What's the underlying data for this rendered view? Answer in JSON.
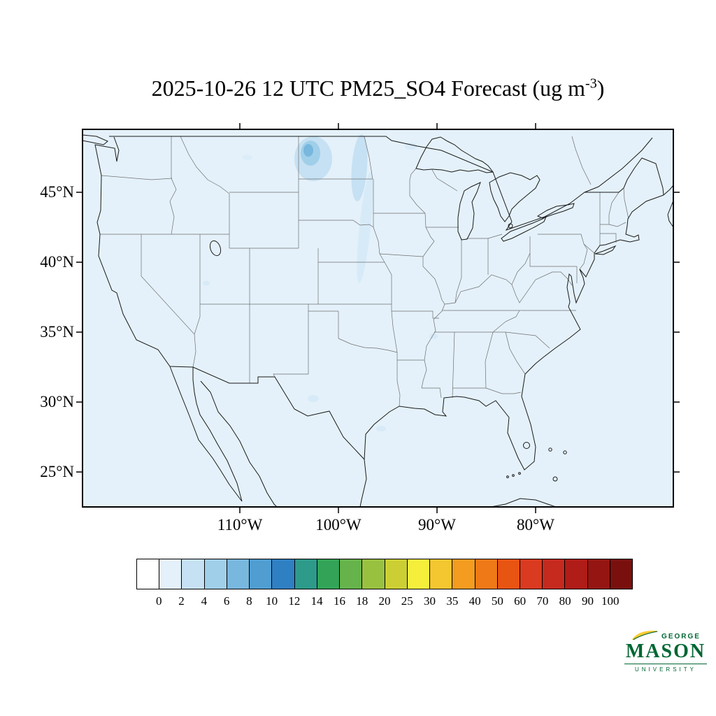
{
  "title": {
    "prefix": "2025-10-26 12 UTC PM25_SO4 Forecast (ug m",
    "exponent": "-3",
    "suffix": ")"
  },
  "axes": {
    "lat_labels": [
      "45°N",
      "40°N",
      "35°N",
      "30°N",
      "25°N"
    ],
    "lon_labels": [
      "110°W",
      "100°W",
      "90°W",
      "80°W"
    ]
  },
  "colorbar": {
    "labels": [
      "0",
      "2",
      "4",
      "6",
      "8",
      "10",
      "12",
      "14",
      "16",
      "18",
      "20",
      "25",
      "30",
      "35",
      "40",
      "50",
      "60",
      "70",
      "80",
      "90",
      "100"
    ],
    "colors": [
      "#ffffff",
      "#e4f1fa",
      "#c6e1f3",
      "#a0cfe9",
      "#78b7de",
      "#509dd1",
      "#2f7fc3",
      "#2d9a8a",
      "#33a457",
      "#66b34c",
      "#99c140",
      "#cccf33",
      "#f5ef3c",
      "#f4c630",
      "#f39c1f",
      "#ef7916",
      "#e85412",
      "#d93a20",
      "#c62a1f",
      "#b01c17",
      "#951512",
      "#7a100e"
    ]
  },
  "map": {
    "background_color": "#e4f1fa",
    "coastline_color": "#1a1a1a",
    "state_border_color": "#6f6f6f"
  },
  "logo": {
    "top": "GEORGE",
    "name": "MASON",
    "bottom": "UNIVERSITY"
  },
  "brand": {
    "gmu_green": "#006633",
    "gmu_gold": "#ffcc33"
  },
  "chart_data": {
    "type": "heatmap",
    "title": "2025-10-26 12 UTC PM25_SO4 Forecast (ug m-3)",
    "variable": "PM25_SO4",
    "units": "ug m-3",
    "valid_time": "2025-10-26 12 UTC",
    "region": "Continental United States",
    "levels": [
      0,
      2,
      4,
      6,
      8,
      10,
      12,
      14,
      16,
      18,
      20,
      25,
      30,
      35,
      40,
      50,
      60,
      70,
      80,
      90,
      100
    ],
    "level_colors": [
      "#ffffff",
      "#e4f1fa",
      "#c6e1f3",
      "#a0cfe9",
      "#78b7de",
      "#509dd1",
      "#2f7fc3",
      "#2d9a8a",
      "#33a457",
      "#66b34c",
      "#99c140",
      "#cccf33",
      "#f5ef3c",
      "#f4c630",
      "#f39c1f",
      "#ef7916",
      "#e85412",
      "#d93a20",
      "#c62a1f",
      "#b01c17",
      "#951512",
      "#7a100e"
    ],
    "x_axis": {
      "tick_labels": [
        "110°W",
        "100°W",
        "90°W",
        "80°W"
      ],
      "grid": false
    },
    "y_axis": {
      "tick_labels": [
        "45°N",
        "40°N",
        "35°N",
        "30°N",
        "25°N"
      ],
      "grid": false
    },
    "legend_position": "bottom",
    "regions": [
      {
        "area": "most of CONUS and surrounding ocean",
        "value_range": [
          0,
          2
        ]
      },
      {
        "area": "central/western North Dakota plume core",
        "value_range": [
          4,
          8
        ]
      },
      {
        "area": "North Dakota surrounding plume",
        "value_range": [
          2,
          4
        ]
      },
      {
        "area": "narrow streak eastern Dakotas into Nebraska",
        "value_range": [
          2,
          4
        ]
      },
      {
        "area": "scattered faint specks (Montana, Utah, Texas, Gulf coast, Mississippi)",
        "value_range": [
          2,
          4
        ]
      }
    ]
  }
}
